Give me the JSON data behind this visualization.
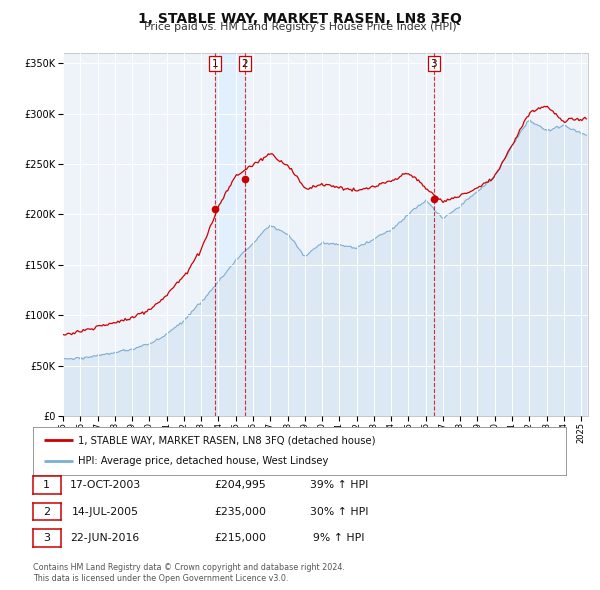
{
  "title": "1, STABLE WAY, MARKET RASEN, LN8 3FQ",
  "subtitle": "Price paid vs. HM Land Registry’s House Price Index (HPI)",
  "legend_line1": "1, STABLE WAY, MARKET RASEN, LN8 3FQ (detached house)",
  "legend_line2": "HPI: Average price, detached house, West Lindsey",
  "footer1": "Contains HM Land Registry data © Crown copyright and database right 2024.",
  "footer2": "This data is licensed under the Open Government Licence v3.0.",
  "transactions": [
    {
      "num": 1,
      "date": "17-OCT-2003",
      "price": "£204,995",
      "pct": "39% ↑ HPI",
      "year": 2003.79,
      "price_val": 204995
    },
    {
      "num": 2,
      "date": "14-JUL-2005",
      "price": "£235,000",
      "pct": "30% ↑ HPI",
      "year": 2005.54,
      "price_val": 235000
    },
    {
      "num": 3,
      "date": "22-JUN-2016",
      "price": "£215,000",
      "pct": "9% ↑ HPI",
      "year": 2016.47,
      "price_val": 215000
    }
  ],
  "property_color": "#cc0000",
  "hpi_color": "#7bafd4",
  "hpi_fill_color": "#dde8f5",
  "background_color": "#eef2f9",
  "grid_color": "#ffffff",
  "ylim": [
    0,
    360000
  ],
  "yticks": [
    0,
    50000,
    100000,
    150000,
    200000,
    250000,
    300000,
    350000
  ],
  "xlim_start": 1995.0,
  "xlim_end": 2025.4,
  "span_color": "#ddeeff",
  "num_box_color": "#cc0000"
}
